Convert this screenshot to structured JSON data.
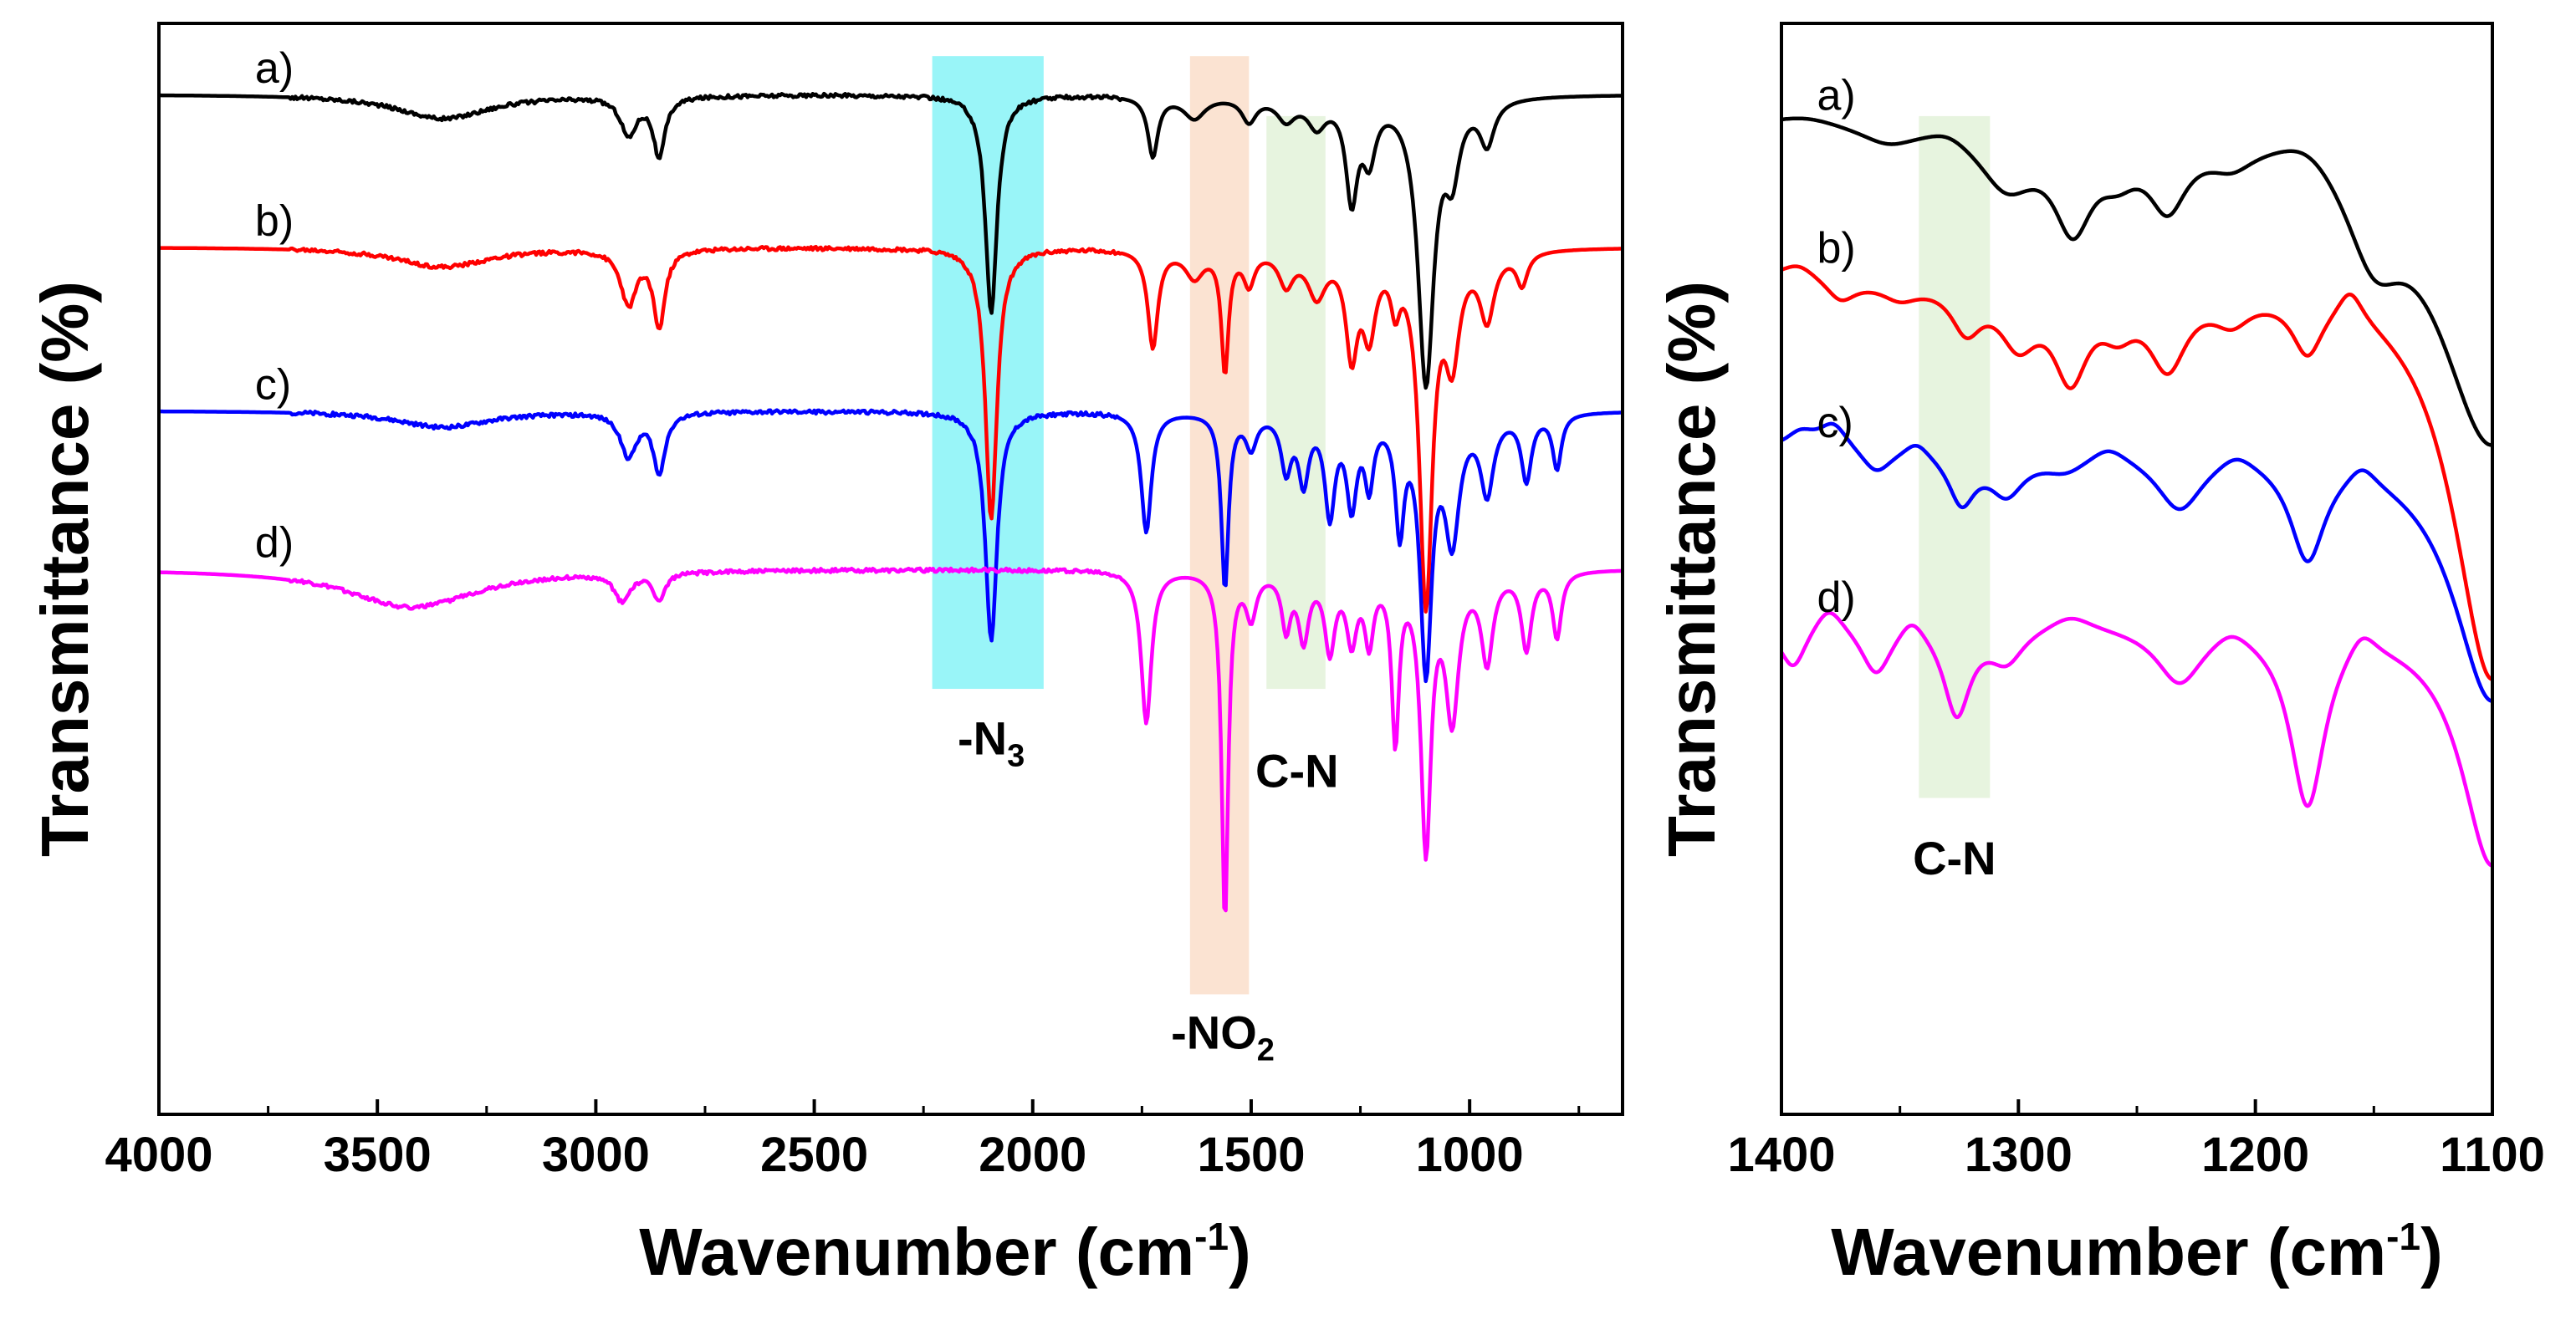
{
  "chart_data": [
    {
      "type": "line",
      "panel": "left",
      "xlabel": "Wavenumber (cm",
      "xlabel_sup": "-1",
      "xlabel_close": ")",
      "ylabel": "Transmittance (%)",
      "xlim": [
        4000,
        650
      ],
      "x_reversed": true,
      "xticks": [
        "4000",
        "3500",
        "3000",
        "2500",
        "2000",
        "1500",
        "1000"
      ],
      "xtick_values": [
        4000,
        3500,
        3000,
        2500,
        2000,
        1500,
        1000
      ],
      "ylim": [
        0,
        100
      ],
      "grid": false,
      "series": [
        {
          "name": "a)",
          "color": "#000000",
          "baseline": 93.5,
          "bands": [
            [
              3350,
              2.2,
              130
            ],
            [
              2925,
              3.5,
              22
            ],
            [
              2855,
              5.5,
              16
            ],
            [
              2095,
              20,
              16
            ],
            [
              1725,
              5.5,
              14
            ],
            [
              1630,
              2.0,
              30
            ],
            [
              1505,
              2.2,
              20
            ],
            [
              1420,
              2.0,
              25
            ],
            [
              1350,
              2.5,
              25
            ],
            [
              1270,
              9,
              16
            ],
            [
              1230,
              5,
              18
            ],
            [
              1100,
              26,
              22
            ],
            [
              1040,
              6,
              20
            ],
            [
              960,
              4,
              20
            ]
          ]
        },
        {
          "name": "b)",
          "color": "#ff0000",
          "baseline": 79.5,
          "bands": [
            [
              3350,
              1.8,
              130
            ],
            [
              2925,
              5,
              22
            ],
            [
              2855,
              7,
              16
            ],
            [
              2095,
              25,
              16
            ],
            [
              1725,
              9,
              14
            ],
            [
              1630,
              2.5,
              25
            ],
            [
              1560,
              11,
              10
            ],
            [
              1505,
              3,
              15
            ],
            [
              1420,
              3,
              20
            ],
            [
              1350,
              4,
              25
            ],
            [
              1270,
              9,
              16
            ],
            [
              1230,
              7,
              18
            ],
            [
              1170,
              4,
              12
            ],
            [
              1100,
              32,
              18
            ],
            [
              1040,
              9,
              20
            ],
            [
              960,
              6,
              20
            ],
            [
              880,
              3,
              15
            ]
          ]
        },
        {
          "name": "c)",
          "color": "#0000ff",
          "baseline": 64.5,
          "bands": [
            [
              3350,
              1.5,
              130
            ],
            [
              2925,
              4,
              22
            ],
            [
              2855,
              5.5,
              16
            ],
            [
              2095,
              21,
              16
            ],
            [
              1740,
              11,
              14
            ],
            [
              1560,
              16,
              10
            ],
            [
              1500,
              3,
              15
            ],
            [
              1420,
              5,
              14
            ],
            [
              1380,
              6,
              14
            ],
            [
              1320,
              9,
              14
            ],
            [
              1270,
              8,
              14
            ],
            [
              1230,
              6,
              12
            ],
            [
              1160,
              10,
              12
            ],
            [
              1100,
              23,
              16
            ],
            [
              1040,
              11,
              20
            ],
            [
              960,
              7,
              18
            ],
            [
              870,
              6,
              14
            ],
            [
              800,
              5,
              12
            ]
          ]
        },
        {
          "name": "d)",
          "color": "#ff00ff",
          "baseline": 50,
          "bands": [
            [
              3420,
              3.5,
              180
            ],
            [
              2940,
              2.5,
              22
            ],
            [
              2855,
              2.5,
              16
            ],
            [
              1740,
              14,
              14
            ],
            [
              1560,
              32,
              9
            ],
            [
              1500,
              4,
              14
            ],
            [
              1420,
              5,
              12
            ],
            [
              1380,
              6,
              14
            ],
            [
              1320,
              7,
              14
            ],
            [
              1270,
              6,
              14
            ],
            [
              1230,
              6,
              12
            ],
            [
              1170,
              15,
              10
            ],
            [
              1100,
              25,
              14
            ],
            [
              1040,
              13,
              18
            ],
            [
              960,
              8,
              16
            ],
            [
              870,
              7,
              14
            ],
            [
              800,
              6,
              12
            ]
          ]
        }
      ],
      "series_label_x": 3780,
      "series_label_y": [
        93.5,
        79.5,
        64.5,
        50
      ],
      "annotations": [
        {
          "label": "-N",
          "sub": "3",
          "x_range": [
            2230,
            1975
          ],
          "y_range": [
            39,
            97
          ],
          "color": "#00e5ee",
          "opacity": 0.4,
          "label_x": 2095,
          "label_y": 33
        },
        {
          "label": "-NO",
          "sub": "2",
          "x_range": [
            1640,
            1505
          ],
          "y_range": [
            11,
            97
          ],
          "color": "#f7c29b",
          "opacity": 0.45,
          "label_x": 1565,
          "label_y": 6
        },
        {
          "label": "C-N",
          "x_range": [
            1465,
            1330
          ],
          "y_range": [
            39,
            91.5
          ],
          "color": "#c9e7b8",
          "opacity": 0.45,
          "label_x": 1395,
          "label_y": 30
        }
      ]
    },
    {
      "type": "line",
      "panel": "right",
      "xlabel": "Wavenumber (cm",
      "xlabel_sup": "-1",
      "xlabel_close": ")",
      "ylabel": "Transmittance (%)",
      "xlim": [
        1400,
        1100
      ],
      "x_reversed": true,
      "xticks": [
        "1400",
        "1300",
        "1200",
        "1100"
      ],
      "xtick_values": [
        1400,
        1300,
        1200,
        1100
      ],
      "ylim": [
        0,
        100
      ],
      "grid": false,
      "series": [
        {
          "name": "a)",
          "color": "#000000",
          "baseline": 91,
          "bands": [
            [
              1390,
              -1,
              20
            ],
            [
              1355,
              1.5,
              15
            ],
            [
              1330,
              -1,
              12
            ],
            [
              1305,
              5,
              15
            ],
            [
              1277,
              8,
              10
            ],
            [
              1258,
              2.5,
              10
            ],
            [
              1237,
              6,
              10
            ],
            [
              1210,
              2,
              12
            ],
            [
              1178,
              -2.5,
              18
            ],
            [
              1150,
              8,
              15
            ],
            [
              1100,
              29,
              28
            ]
          ]
        },
        {
          "name": "b)",
          "color": "#ff0000",
          "baseline": 77,
          "bands": [
            [
              1393,
              -1.5,
              10
            ],
            [
              1375,
              2,
              8
            ],
            [
              1350,
              1.5,
              10
            ],
            [
              1322,
              4,
              8
            ],
            [
              1300,
              5,
              10
            ],
            [
              1278,
              8,
              9
            ],
            [
              1258,
              3,
              9
            ],
            [
              1237,
              7,
              10
            ],
            [
              1210,
              2.5,
              10
            ],
            [
              1178,
              5,
              8
            ],
            [
              1160,
              -3,
              7
            ],
            [
              1100,
              37,
              20
            ]
          ]
        },
        {
          "name": "c)",
          "color": "#0000ff",
          "baseline": 61,
          "bands": [
            [
              1392,
              -1.5,
              8
            ],
            [
              1378,
              -2.5,
              8
            ],
            [
              1360,
              2.2,
              8
            ],
            [
              1343,
              -1.5,
              7
            ],
            [
              1324,
              4.5,
              7
            ],
            [
              1305,
              3.5,
              9
            ],
            [
              1280,
              1.5,
              12
            ],
            [
              1262,
              -1.5,
              10
            ],
            [
              1232,
              5,
              12
            ],
            [
              1208,
              -1.5,
              10
            ],
            [
              1178,
              9,
              9
            ],
            [
              1155,
              -2,
              8
            ],
            [
              1100,
              23,
              20
            ]
          ]
        },
        {
          "name": "d)",
          "color": "#ff00ff",
          "baseline": 45,
          "bands": [
            [
              1395,
              4,
              7
            ],
            [
              1380,
              -2.5,
              8
            ],
            [
              1360,
              4.5,
              8
            ],
            [
              1345,
              -2,
              7
            ],
            [
              1326,
              8,
              7
            ],
            [
              1305,
              3,
              9
            ],
            [
              1278,
              -1.5,
              12
            ],
            [
              1232,
              5,
              12
            ],
            [
              1210,
              -1.5,
              10
            ],
            [
              1178,
              16,
              9
            ],
            [
              1155,
              -2.5,
              8
            ],
            [
              1100,
              22,
              16
            ]
          ]
        }
      ],
      "series_label_x": 1385,
      "series_label_y": [
        91,
        77,
        61,
        45
      ],
      "annotations": [
        {
          "label": "C-N",
          "x_range": [
            1342,
            1312
          ],
          "y_range": [
            29,
            91.5
          ],
          "color": "#c9e7b8",
          "opacity": 0.45,
          "label_x": 1327,
          "label_y": 22
        }
      ]
    }
  ]
}
